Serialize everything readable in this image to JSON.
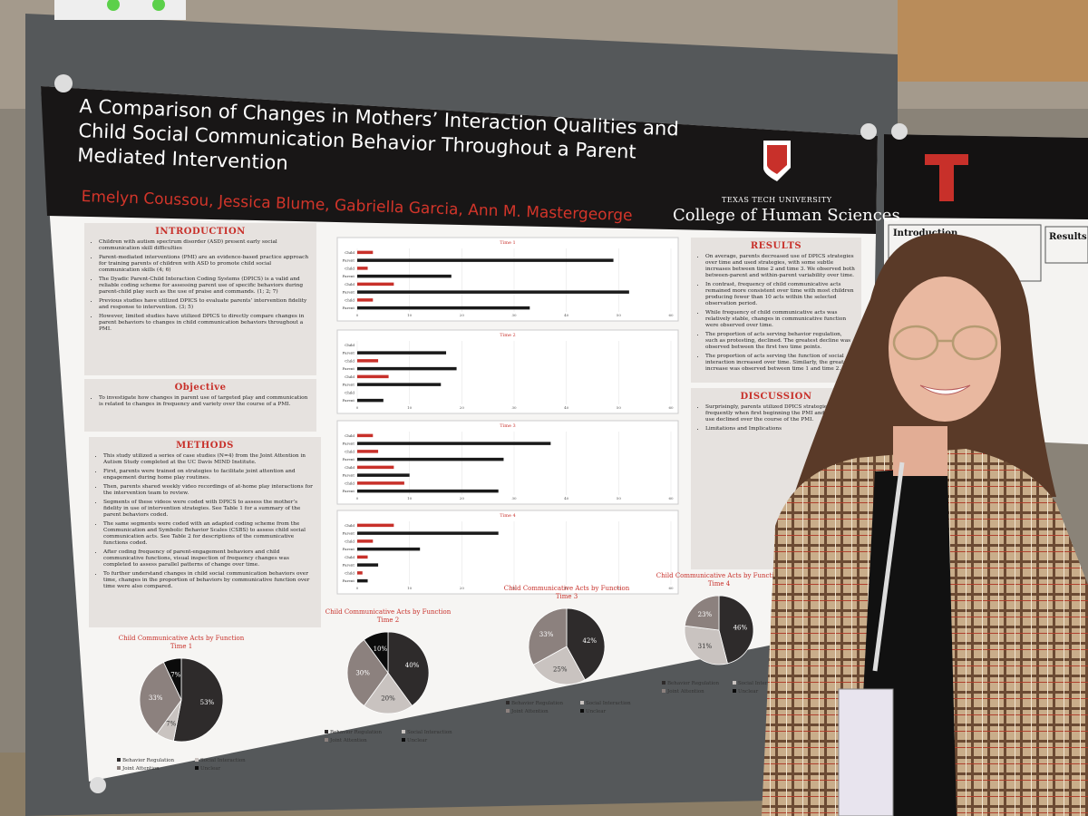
{
  "poster": {
    "title": "A Comparison of Changes in Mothers’ Interaction Qualities and Child Social Communication Behavior Throughout a Parent Mediated Intervention",
    "authors": "Emelyn Coussou, Jessica Blume, Gabriella Garcia, Ann M. Mastergeorge",
    "university": "TEXAS TECH UNIVERSITY",
    "college": "College of Human Sciences",
    "sections": [
      {
        "heading": "INTRODUCTION",
        "bullets": [
          "Children with autism spectrum disorder (ASD) present early social communication skill difficulties",
          "Parent-mediated interventions (PMI) are an evidence-based practice approach for training parents of children with ASD to promote child social communication skills (4; 6)",
          "The Dyadic Parent-Child Interaction Coding Systems (DPICS) is a valid and reliable coding scheme for assessing parent use of specific behaviors during parent-child play such as the use of praise and commands. (1; 2; 7)",
          "Previous studies have utilized DPICS to evaluate parents’ intervention fidelity and response to intervention. (3; 5)",
          "However, limited studies have utilized DPICS to directly compare changes in parent behaviors to changes in child communication behaviors throughout a PMI."
        ]
      },
      {
        "heading": "Objective",
        "bullets": [
          "To investigate how changes in parent use of targeted play and communication is related to changes in frequency and variety over the course of a PMI."
        ]
      },
      {
        "heading": "METHODS",
        "bullets": [
          "This study utilized a series of case studies (N=4) from the Joint Attention in Autism Study completed at the UC Davis MIND Institute.",
          "First, parents were trained on strategies to facilitate joint attention and engagement during home play routines.",
          "Then, parents shared weekly video recordings of at-home play interactions for the intervention team to review.",
          "Segments of these videos were coded with DPICS to assess the mother’s fidelity in use of intervention strategies. See Table 1 for a summary of the parent behaviors coded.",
          "The same segments were coded with an adapted coding scheme from the Communication and Symbolic Behavior Scales (CSBS) to assess child social communication acts. See Table 2 for descriptions of the communicative functions coded.",
          "After coding frequency of parent-engagement behaviors and child communicative functions, visual inspection of frequency changes was completed to assess parallel patterns of change over time.",
          "To further understand changes in child social communication behaviors over time, changes in the proportion of behaviors by communicative function over time were also compared."
        ]
      },
      {
        "heading": "RESULTS",
        "bullets": [
          "On average, parents decreased use of DPICS strategies over time and used strategies, with some subtle increases between time 2 and time 3. We observed both between-parent and within-parent variability over time.",
          "In contrast, frequency of child communicative acts remained more consistent over time with most children producing fewer than 10 acts within the selected observation period.",
          "While frequency of child communicative acts was relatively stable, changes in communicative function were observed over time.",
          "The proportion of acts serving behavior regulation, such as protesting, declined. The greatest decline was observed between the first two time points.",
          "The proportion of acts serving the function of social interaction increased over time. Similarly, the greatest increase was observed between time 1 and time 2."
        ]
      },
      {
        "heading": "DISCUSSION",
        "bullets": [
          "Surprisingly, parents utilized DPICS strategies more frequently when first beginning the PMI and strategy use declined over the course of the PMI.",
          "Limitations and Implications"
        ]
      }
    ],
    "side_poster": [
      "Introduction",
      "Results"
    ]
  },
  "chart_data": [
    {
      "type": "bar",
      "title": "Time 1",
      "categories": [
        "Child",
        "Parent",
        "Child",
        "Parent",
        "Child",
        "Parent",
        "Child",
        "Parent"
      ],
      "values": [
        3,
        49,
        2,
        18,
        7,
        52,
        3,
        33
      ],
      "colors": [
        "#c8302a",
        "#1a1a1a",
        "#c8302a",
        "#1a1a1a",
        "#c8302a",
        "#1a1a1a",
        "#c8302a",
        "#1a1a1a"
      ],
      "xlim": [
        0,
        60
      ],
      "xticks": [
        0,
        10,
        20,
        30,
        40,
        50,
        60
      ]
    },
    {
      "type": "bar",
      "title": "Time 2",
      "categories": [
        "Child",
        "Parent",
        "Child",
        "Parent",
        "Child",
        "Parent",
        "Child",
        "Parent"
      ],
      "values": [
        0,
        17,
        4,
        19,
        6,
        16,
        0,
        5
      ],
      "colors": [
        "#c8302a",
        "#1a1a1a",
        "#c8302a",
        "#1a1a1a",
        "#c8302a",
        "#1a1a1a",
        "#c8302a",
        "#1a1a1a"
      ],
      "xlim": [
        0,
        60
      ],
      "xticks": [
        0,
        10,
        20,
        30,
        40,
        50,
        60
      ]
    },
    {
      "type": "bar",
      "title": "Time 3",
      "categories": [
        "Child",
        "Parent",
        "Child",
        "Parent",
        "Child",
        "Parent",
        "Child",
        "Parent"
      ],
      "values": [
        3,
        37,
        4,
        28,
        7,
        10,
        9,
        27
      ],
      "colors": [
        "#c8302a",
        "#1a1a1a",
        "#c8302a",
        "#1a1a1a",
        "#c8302a",
        "#1a1a1a",
        "#c8302a",
        "#1a1a1a"
      ],
      "xlim": [
        0,
        60
      ],
      "xticks": [
        0,
        10,
        20,
        30,
        40,
        50,
        60
      ]
    },
    {
      "type": "bar",
      "title": "Time 4",
      "categories": [
        "Child",
        "Parent",
        "Child",
        "Parent",
        "Child",
        "Parent",
        "Child",
        "Parent"
      ],
      "values": [
        7,
        27,
        3,
        12,
        2,
        4,
        1,
        2
      ],
      "colors": [
        "#c8302a",
        "#1a1a1a",
        "#c8302a",
        "#1a1a1a",
        "#c8302a",
        "#1a1a1a",
        "#c8302a",
        "#1a1a1a"
      ],
      "xlim": [
        0,
        60
      ],
      "xticks": [
        0,
        10,
        20,
        30,
        40,
        50,
        60
      ]
    },
    {
      "type": "pie",
      "title": "Child Communicative Acts by Function",
      "subtitle": "Time 1",
      "categories": [
        "Behavior Regulation",
        "Social Interaction",
        "Joint Attention",
        "Unclear"
      ],
      "values": [
        53,
        7,
        33,
        7
      ],
      "value_labels": [
        "53%",
        "7%",
        "33%",
        "7%"
      ],
      "colors": [
        "#2e2b2b",
        "#c9c3c0",
        "#8c817e",
        "#0b0b0b"
      ]
    },
    {
      "type": "pie",
      "title": "Child Communicative Acts by Function",
      "subtitle": "Time 2",
      "categories": [
        "Behavior Regulation",
        "Social Interaction",
        "Joint Attention",
        "Unclear"
      ],
      "values": [
        40,
        20,
        30,
        10
      ],
      "value_labels": [
        "40%",
        "20%",
        "30%",
        "10%"
      ],
      "colors": [
        "#2e2b2b",
        "#c9c3c0",
        "#8c817e",
        "#0b0b0b"
      ]
    },
    {
      "type": "pie",
      "title": "Child Communicative Acts by Function",
      "subtitle": "Time 3",
      "categories": [
        "Behavior Regulation",
        "Social Interaction",
        "Joint Attention",
        "Unclear"
      ],
      "values": [
        42,
        25,
        33,
        null
      ],
      "value_labels": [
        "42%",
        "25%",
        "33%",
        null
      ],
      "colors": [
        "#2e2b2b",
        "#c9c3c0",
        "#8c817e",
        "#0b0b0b"
      ]
    },
    {
      "type": "pie",
      "title": "Child Communicative Acts by Function",
      "subtitle": "Time 4",
      "categories": [
        "Behavior Regulation",
        "Social Interaction",
        "Joint Attention",
        "Unclear"
      ],
      "values": [
        46,
        31,
        23,
        null
      ],
      "value_labels": [
        "46%",
        "31%",
        "23%",
        null
      ],
      "colors": [
        "#2e2b2b",
        "#c9c3c0",
        "#8c817e",
        "#0b0b0b"
      ]
    }
  ]
}
